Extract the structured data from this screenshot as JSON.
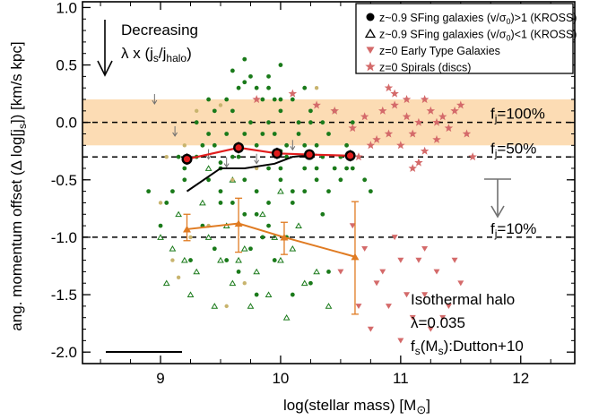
{
  "chart_data": {
    "type": "scatter",
    "xlabel": "log(stellar mass) [M",
    "xlabel_symbol": "⊙",
    "xlabel_close": "]",
    "ylabel": "ang. momentum offset (Δ log[j",
    "ylabel_sub": "s",
    "ylabel_close": "]) [km/s kpc]",
    "xlim": [
      8.35,
      12.45
    ],
    "ylim": [
      -2.1,
      1.05
    ],
    "xticks": [
      9,
      10,
      11,
      12
    ],
    "yticks": [
      1.0,
      0.5,
      0.0,
      -0.5,
      -1.0,
      -1.5,
      -2.0
    ],
    "ytick_labels": [
      "1.0",
      "0.5",
      "0.0",
      "-0.5",
      "-1.0",
      "-1.5",
      "-2.0"
    ],
    "xtick_labels": [
      "9",
      "10",
      "11",
      "12"
    ],
    "colors": {
      "green": "#1a7a1a",
      "tan": "#c8b46e",
      "red": "#e11d1d",
      "orange": "#e07b22",
      "pink": "#d46a6a",
      "band": "#fcdcb4",
      "black": "#000000",
      "gray": "#707070"
    },
    "band": {
      "y0": -0.2,
      "y1": 0.2
    },
    "reference_lines": [
      {
        "y": 0.0,
        "label": "100%"
      },
      {
        "y": -0.301,
        "label": "50%"
      },
      {
        "y": -1.0,
        "label": "10%"
      }
    ],
    "ref_label_prefix": "f",
    "ref_label_sub": "j",
    "ref_label_eq": "=",
    "annotation_decreasing": {
      "line1": "Decreasing",
      "line2_a": "λ x (j",
      "line2_sub1": "s",
      "line2_b": "/j",
      "line2_sub2": "halo",
      "line2_c": ")"
    },
    "annotation_model": {
      "line1": "Isothermal halo",
      "line2": "λ=0.035",
      "line3_a": "f",
      "line3_sub": "s",
      "line3_b": "(M",
      "line3_sub2": "s",
      "line3_c": "):Dutton+10"
    },
    "legend": {
      "position": "top-right",
      "entries": [
        {
          "marker": "filled-circle",
          "color": "#000000",
          "a": "z~0.9 SFing galaxies (v/σ",
          "sub": "0",
          "b": ")>1 (KROSS)"
        },
        {
          "marker": "open-triangle",
          "color": "#000000",
          "a": "z~0.9 SFing galaxies (v/σ",
          "sub": "0",
          "b": ")<1 (KROSS)"
        },
        {
          "marker": "down-triangle",
          "color": "#d46a6a",
          "a": "z=0 Early Type Galaxies",
          "sub": "",
          "b": ""
        },
        {
          "marker": "star",
          "color": "#d46a6a",
          "a": "z=0 Spirals (discs)",
          "sub": "",
          "b": ""
        }
      ]
    },
    "series": [
      {
        "name": "binned median v/σ>1",
        "kind": "red-errorbar",
        "x": [
          9.22,
          9.65,
          9.97,
          10.24,
          10.58
        ],
        "y": [
          -0.32,
          -0.22,
          -0.27,
          -0.28,
          -0.29
        ],
        "yerr": [
          0.05,
          0.05,
          0.05,
          0.04,
          0.05
        ]
      },
      {
        "name": "binned median v/σ<1",
        "kind": "orange-errorbar",
        "x": [
          9.22,
          9.65,
          10.03,
          10.62
        ],
        "y": [
          -0.93,
          -0.88,
          -1.0,
          -1.17
        ],
        "yerr_low": [
          0.1,
          0.25,
          0.15,
          0.5
        ],
        "yerr_high": [
          0.13,
          0.22,
          0.13,
          0.48
        ]
      },
      {
        "name": "running median",
        "kind": "black-line",
        "x": [
          9.22,
          9.5,
          9.7,
          9.95,
          10.1,
          10.3
        ],
        "y": [
          -0.6,
          -0.4,
          -0.4,
          -0.36,
          -0.3,
          -0.28
        ]
      },
      {
        "name": "z~0.9 v/σ>1 (green)",
        "kind": "green-dots",
        "x": [
          9.1,
          9.2,
          9.3,
          9.35,
          9.4,
          9.45,
          9.5,
          9.55,
          9.6,
          9.65,
          9.7,
          9.75,
          9.8,
          9.85,
          9.9,
          9.95,
          10.0,
          10.05,
          10.1,
          10.15,
          10.2,
          10.25,
          10.3,
          10.35,
          10.4,
          10.45,
          10.5,
          10.55,
          10.6,
          10.7,
          9.4,
          9.5,
          9.6,
          9.7,
          9.8,
          9.9,
          10.0,
          10.1,
          10.2,
          10.3,
          10.4,
          9.3,
          9.55,
          9.75,
          9.95,
          10.15,
          10.35,
          10.55,
          9.45,
          9.65,
          9.85,
          10.05,
          10.25,
          10.45,
          9.2,
          9.6,
          9.9,
          10.2,
          10.5,
          9.8,
          10.0,
          10.3,
          9.7,
          9.9,
          10.1,
          9.5,
          9.8,
          10.0,
          9.6,
          9.9,
          10.2,
          9.4,
          9.7,
          10.0,
          9.35,
          9.85,
          10.35,
          9.05,
          9.15,
          8.9,
          9.0,
          10.6,
          10.75,
          9.55,
          9.75,
          10.05,
          9.65,
          9.95,
          10.25,
          9.45,
          9.25,
          9.8,
          10.1,
          10.4,
          9.7,
          10.0,
          9.5,
          9.9
        ],
        "y": [
          -0.6,
          -0.5,
          -0.3,
          -0.2,
          -0.1,
          0.1,
          -0.4,
          0.2,
          -0.3,
          0.3,
          -0.1,
          0.4,
          -0.2,
          0.2,
          0.3,
          -0.1,
          0.1,
          -0.3,
          0.2,
          0.0,
          -0.2,
          0.1,
          -0.4,
          0.0,
          -0.1,
          0.1,
          -0.3,
          -0.2,
          0.0,
          -0.5,
          -0.5,
          -0.6,
          -0.7,
          -0.5,
          -0.6,
          -0.4,
          -0.5,
          -0.6,
          -0.4,
          -0.5,
          -0.6,
          0.0,
          -0.1,
          0.0,
          0.2,
          -0.1,
          -0.3,
          -0.4,
          -0.2,
          -0.3,
          -0.1,
          -0.2,
          0.0,
          -0.4,
          -0.4,
          0.1,
          -0.7,
          -0.6,
          -0.5,
          0.3,
          0.2,
          -0.2,
          -0.8,
          -0.9,
          -0.7,
          -0.7,
          -0.8,
          -0.4,
          0.45,
          0.4,
          0.3,
          0.2,
          0.55,
          0.5,
          -0.9,
          -1.0,
          -0.8,
          -0.7,
          -0.3,
          -0.6,
          -0.9,
          -0.4,
          -0.6,
          -1.2,
          -1.1,
          -1.0,
          -1.3,
          -1.2,
          -1.4,
          -1.1,
          -1.2,
          -1.5,
          -1.5,
          -1.3,
          0.35,
          -0.25,
          -0.35,
          0.0
        ]
      },
      {
        "name": "z~0.9 tan dots",
        "kind": "tan-dots",
        "x": [
          9.05,
          9.2,
          9.3,
          9.5,
          9.6,
          9.1,
          9.4,
          9.7,
          9.55,
          9.0,
          9.25,
          9.8,
          10.0,
          10.3,
          9.15
        ],
        "y": [
          -0.3,
          -0.2,
          0.1,
          0.15,
          -0.5,
          -1.2,
          -0.9,
          -1.4,
          -1.6,
          -0.7,
          -1.0,
          -0.4,
          0.2,
          0.3,
          -1.35
        ]
      },
      {
        "name": "z~0.9 v/σ<1 (open triangles)",
        "kind": "open-triangles",
        "x": [
          9.0,
          9.1,
          9.2,
          9.3,
          9.4,
          9.5,
          9.6,
          9.7,
          9.8,
          9.9,
          10.0,
          10.1,
          10.2,
          10.3,
          9.15,
          9.35,
          9.55,
          9.75,
          9.95,
          10.15,
          9.25,
          9.45,
          9.65,
          9.85,
          10.05,
          9.05,
          9.6,
          10.0,
          10.4,
          9.4
        ],
        "y": [
          -1.0,
          -1.1,
          -1.2,
          -1.3,
          -1.0,
          -1.2,
          -1.4,
          -1.1,
          -1.3,
          -1.5,
          -1.2,
          -1.1,
          -1.4,
          -1.3,
          -0.8,
          -0.7,
          -0.9,
          -1.6,
          -1.0,
          -0.9,
          -1.5,
          -1.6,
          -1.2,
          -0.8,
          -1.7,
          -1.4,
          -0.5,
          -0.6,
          -1.6,
          -0.4
        ]
      },
      {
        "name": "z=0 Early Type Galaxies",
        "kind": "pink-down-triangles",
        "x": [
          10.5,
          10.7,
          10.8,
          10.9,
          11.0,
          11.1,
          11.2,
          11.3,
          11.4,
          11.5,
          10.6,
          10.75,
          10.95,
          11.05,
          11.15,
          11.25,
          11.35,
          10.85,
          11.45,
          10.65,
          11.0,
          11.2
        ],
        "y": [
          -1.3,
          -1.1,
          -1.4,
          -1.6,
          -1.2,
          -1.7,
          -1.5,
          -1.3,
          -1.6,
          -1.4,
          -0.9,
          -1.8,
          -1.0,
          -1.5,
          -1.2,
          -1.8,
          -1.7,
          -1.3,
          -1.2,
          -1.6,
          -1.9,
          -1.1
        ]
      },
      {
        "name": "z=0 Spirals (discs)",
        "kind": "pink-stars",
        "x": [
          10.45,
          10.6,
          10.7,
          10.8,
          10.85,
          10.9,
          10.95,
          11.0,
          11.05,
          11.1,
          11.15,
          11.2,
          11.25,
          11.3,
          11.35,
          11.4,
          11.5,
          11.6,
          10.75,
          10.95,
          11.05,
          11.15,
          11.3,
          11.45,
          9.8,
          10.1,
          10.3,
          10.9,
          11.1,
          11.2,
          11.55,
          10.65
        ],
        "y": [
          0.1,
          -0.05,
          0.05,
          -0.15,
          0.1,
          -0.1,
          0.15,
          -0.2,
          0.05,
          -0.1,
          0.0,
          -0.25,
          0.1,
          -0.15,
          0.05,
          -0.05,
          0.15,
          -0.3,
          -0.2,
          0.25,
          0.2,
          -0.35,
          0.0,
          0.1,
          0.2,
          0.25,
          0.15,
          0.3,
          -0.4,
          0.2,
          -0.1,
          -0.3
        ]
      },
      {
        "name": "upper limits",
        "kind": "gray-down-arrows",
        "x": [
          8.95,
          9.12,
          9.4,
          9.55,
          9.8,
          10.1
        ],
        "y": [
          0.2,
          -0.08,
          -0.28,
          -0.35,
          -0.32,
          -0.2
        ]
      }
    ]
  }
}
